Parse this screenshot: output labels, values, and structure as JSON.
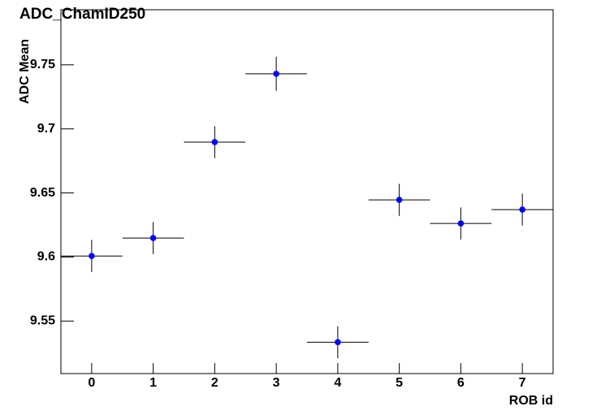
{
  "chart_data": {
    "type": "errorbar",
    "title": "ADC_ChamID250",
    "x_label": "ROB id",
    "y_label": "ADC Mean",
    "x": [
      0,
      1,
      2,
      3,
      4,
      5,
      6,
      7
    ],
    "y": [
      9.6008,
      9.6148,
      9.6897,
      9.743,
      9.5335,
      9.6446,
      9.6262,
      9.637
    ],
    "yerr": [
      0.0125,
      0.0125,
      0.0125,
      0.0133,
      0.0125,
      0.0125,
      0.0125,
      0.0125
    ],
    "xerr": [
      0.5,
      0.5,
      0.5,
      0.5,
      0.5,
      0.5,
      0.5,
      0.5
    ],
    "color": "#0000ff",
    "bar_color": "#000000",
    "xlim": [
      -0.5,
      7.5
    ],
    "ylim": [
      9.509,
      9.793
    ],
    "xticks": [
      0,
      1,
      2,
      3,
      4,
      5,
      6,
      7
    ],
    "yticks": [
      9.55,
      9.6,
      9.65,
      9.7,
      9.75
    ]
  }
}
